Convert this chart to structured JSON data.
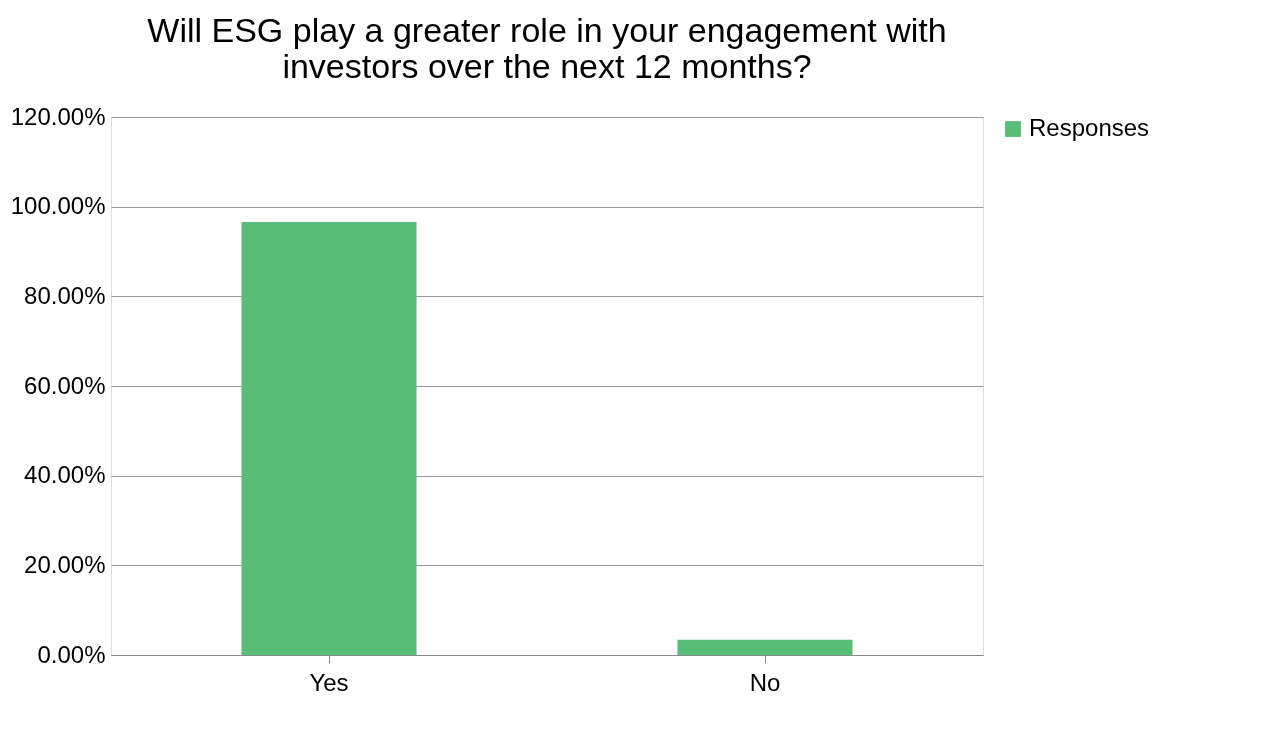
{
  "chart_data": {
    "type": "bar",
    "title": "Will ESG play a greater role in your engagement with\ninvestors over the next 12 months?",
    "categories": [
      "Yes",
      "No"
    ],
    "series": [
      {
        "name": "Responses",
        "color": "#57bd77",
        "values": [
          96.6,
          3.4
        ]
      }
    ],
    "ylim": [
      0,
      120
    ],
    "yticks": [
      {
        "value": 0,
        "label": "0.00%"
      },
      {
        "value": 20,
        "label": "20.00%"
      },
      {
        "value": 40,
        "label": "40.00%"
      },
      {
        "value": 60,
        "label": "60.00%"
      },
      {
        "value": 80,
        "label": "80.00%"
      },
      {
        "value": 100,
        "label": "100.00%"
      },
      {
        "value": 120,
        "label": "120.00%"
      }
    ],
    "grid": "y",
    "legend": "right"
  }
}
